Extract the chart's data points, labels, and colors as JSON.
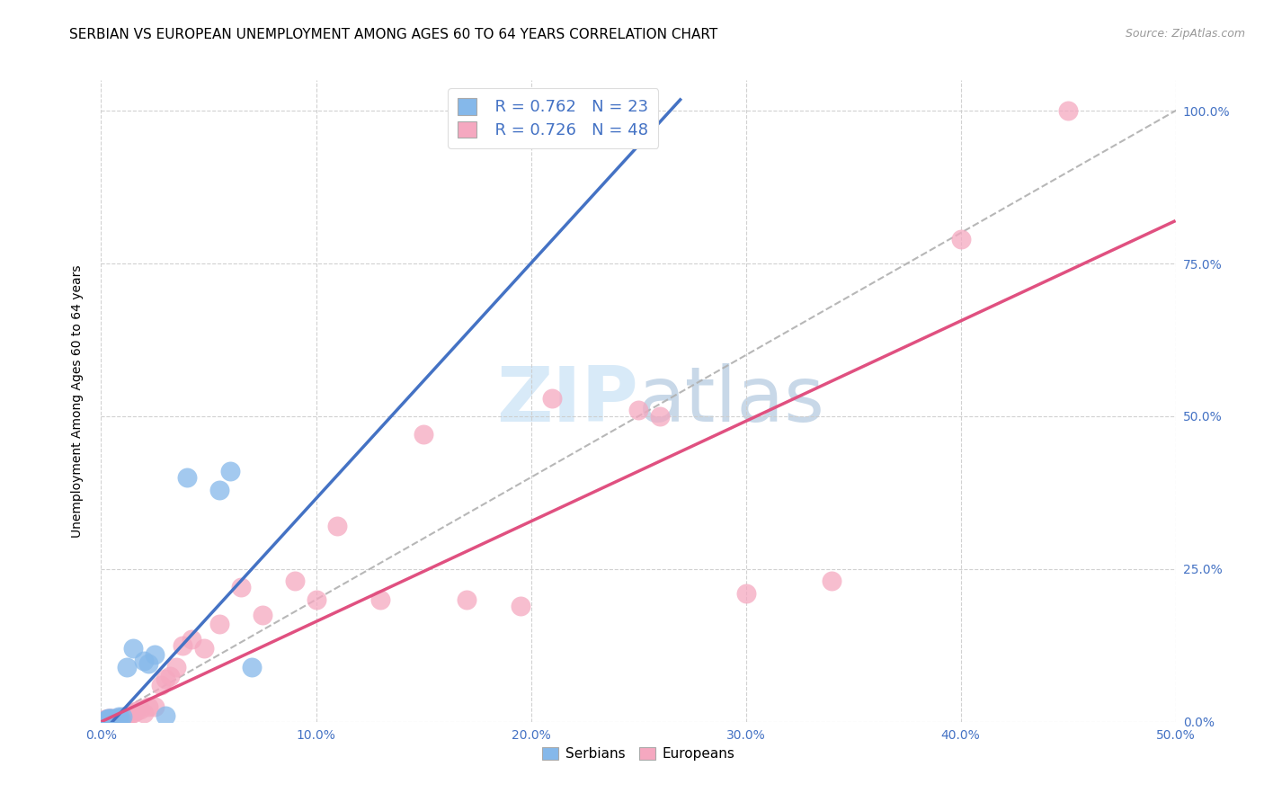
{
  "title": "SERBIAN VS EUROPEAN UNEMPLOYMENT AMONG AGES 60 TO 64 YEARS CORRELATION CHART",
  "source": "Source: ZipAtlas.com",
  "ylabel": "Unemployment Among Ages 60 to 64 years",
  "xlim": [
    0.0,
    0.5
  ],
  "ylim": [
    0.0,
    1.05
  ],
  "legend_r_serbian": "R = 0.762",
  "legend_n_serbian": "N = 23",
  "legend_r_european": "R = 0.726",
  "legend_n_european": "N = 48",
  "serbian_color": "#85B8EA",
  "european_color": "#F5A8C0",
  "serbian_line_color": "#4472C4",
  "european_line_color": "#E05080",
  "ref_line_color": "#B0B0B0",
  "watermark_color": "#D8EAF8",
  "tick_color": "#4472C4",
  "serbian_points_x": [
    0.002,
    0.003,
    0.003,
    0.004,
    0.004,
    0.005,
    0.005,
    0.006,
    0.007,
    0.008,
    0.008,
    0.009,
    0.01,
    0.012,
    0.015,
    0.02,
    0.022,
    0.025,
    0.03,
    0.04,
    0.055,
    0.06,
    0.07
  ],
  "serbian_points_y": [
    0.003,
    0.004,
    0.005,
    0.003,
    0.005,
    0.004,
    0.006,
    0.003,
    0.005,
    0.004,
    0.008,
    0.005,
    0.008,
    0.09,
    0.12,
    0.1,
    0.095,
    0.11,
    0.01,
    0.4,
    0.38,
    0.41,
    0.09
  ],
  "european_points_x": [
    0.001,
    0.002,
    0.002,
    0.003,
    0.003,
    0.004,
    0.004,
    0.005,
    0.005,
    0.006,
    0.007,
    0.007,
    0.008,
    0.009,
    0.01,
    0.011,
    0.012,
    0.013,
    0.015,
    0.016,
    0.018,
    0.02,
    0.022,
    0.025,
    0.028,
    0.03,
    0.032,
    0.035,
    0.038,
    0.042,
    0.048,
    0.055,
    0.065,
    0.075,
    0.09,
    0.1,
    0.11,
    0.13,
    0.15,
    0.17,
    0.195,
    0.21,
    0.25,
    0.26,
    0.3,
    0.34,
    0.4,
    0.45
  ],
  "european_points_y": [
    0.003,
    0.003,
    0.004,
    0.004,
    0.005,
    0.003,
    0.005,
    0.004,
    0.005,
    0.004,
    0.005,
    0.006,
    0.005,
    0.007,
    0.006,
    0.008,
    0.01,
    0.012,
    0.015,
    0.018,
    0.02,
    0.015,
    0.025,
    0.025,
    0.06,
    0.07,
    0.075,
    0.09,
    0.125,
    0.135,
    0.12,
    0.16,
    0.22,
    0.175,
    0.23,
    0.2,
    0.32,
    0.2,
    0.47,
    0.2,
    0.19,
    0.53,
    0.51,
    0.5,
    0.21,
    0.23,
    0.79,
    1.0
  ],
  "serbian_line_x": [
    0.0,
    0.27
  ],
  "serbian_line_y": [
    -0.02,
    1.02
  ],
  "european_line_x": [
    0.0,
    0.5
  ],
  "european_line_y": [
    0.0,
    0.82
  ],
  "ref_line_x": [
    0.0,
    0.52
  ],
  "ref_line_y": [
    0.0,
    1.04
  ]
}
